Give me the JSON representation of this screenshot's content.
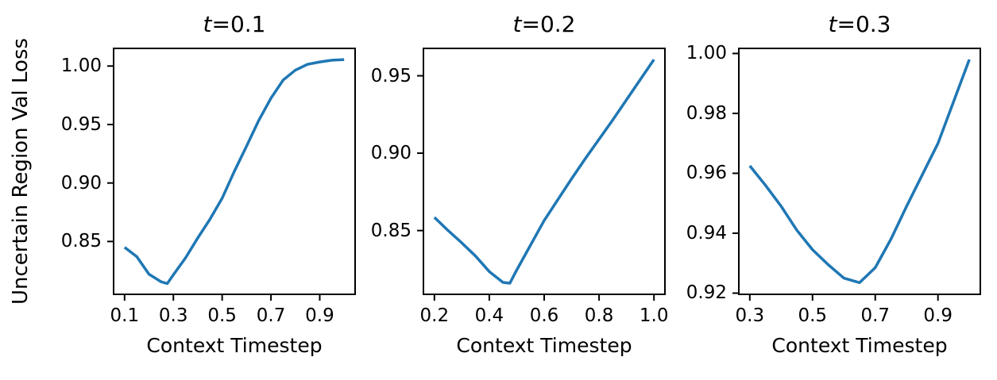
{
  "figure": {
    "background": "#ffffff",
    "spine_color": "#000000",
    "tick_color": "#000000",
    "text_color": "#000000",
    "shared_ylabel": "Uncertain Region Val Loss"
  },
  "chart_data": [
    {
      "type": "line",
      "title": "t=0.1",
      "title_var": "t",
      "title_rest": "=0.1",
      "xlabel": "Context Timestep",
      "ylabel": "Uncertain Region Val Loss",
      "line_color": "#1f77b4",
      "grid": false,
      "legend": null,
      "x": [
        0.1,
        0.15,
        0.2,
        0.25,
        0.275,
        0.3,
        0.35,
        0.4,
        0.45,
        0.5,
        0.55,
        0.6,
        0.65,
        0.7,
        0.75,
        0.8,
        0.85,
        0.9,
        0.95,
        1.0
      ],
      "y": [
        0.845,
        0.837,
        0.822,
        0.8155,
        0.814,
        0.8215,
        0.836,
        0.853,
        0.869,
        0.887,
        0.91,
        0.9315,
        0.9535,
        0.9725,
        0.988,
        0.9965,
        1.0015,
        1.0035,
        1.005,
        1.0055
      ],
      "xlim": [
        0.055,
        1.045
      ],
      "ylim": [
        0.8048,
        1.0151
      ],
      "xtick_values": [
        0.1,
        0.3,
        0.5,
        0.7,
        0.9
      ],
      "xtick_labels": [
        "0.1",
        "0.3",
        "0.5",
        "0.7",
        "0.9"
      ],
      "ytick_values": [
        1.0,
        0.95,
        0.9,
        0.85
      ],
      "ytick_labels": [
        "1.00",
        "0.95",
        "0.90",
        "0.85"
      ]
    },
    {
      "type": "line",
      "title": "t=0.2",
      "title_var": "t",
      "title_rest": "=0.2",
      "xlabel": "Context Timestep",
      "ylabel": "Uncertain Region Val Loss",
      "line_color": "#1f77b4",
      "grid": false,
      "legend": null,
      "x": [
        0.2,
        0.25,
        0.3,
        0.35,
        0.4,
        0.45,
        0.475,
        0.5,
        0.55,
        0.6,
        0.65,
        0.7,
        0.75,
        0.8,
        0.85,
        0.9,
        0.95,
        1.0
      ],
      "y": [
        0.8585,
        0.85,
        0.842,
        0.8335,
        0.8235,
        0.8165,
        0.816,
        0.8245,
        0.8405,
        0.8565,
        0.87,
        0.8835,
        0.8965,
        0.909,
        0.9215,
        0.9345,
        0.9475,
        0.9605
      ],
      "xlim": [
        0.16,
        1.04
      ],
      "ylim": [
        0.8088,
        0.9677
      ],
      "xtick_values": [
        0.2,
        0.4,
        0.6,
        0.8,
        1.0
      ],
      "xtick_labels": [
        "0.2",
        "0.4",
        "0.6",
        "0.8",
        "1.0"
      ],
      "ytick_values": [
        0.95,
        0.9,
        0.85
      ],
      "ytick_labels": [
        "0.95",
        "0.90",
        "0.85"
      ]
    },
    {
      "type": "line",
      "title": "t=0.3",
      "title_var": "t",
      "title_rest": "=0.3",
      "xlabel": "Context Timestep",
      "ylabel": "Uncertain Region Val Loss",
      "line_color": "#1f77b4",
      "grid": false,
      "legend": null,
      "x": [
        0.3,
        0.35,
        0.4,
        0.45,
        0.5,
        0.55,
        0.6,
        0.65,
        0.7,
        0.75,
        0.8,
        0.85,
        0.9,
        0.95,
        1.0
      ],
      "y": [
        0.9625,
        0.956,
        0.949,
        0.941,
        0.9345,
        0.9295,
        0.925,
        0.9235,
        0.9285,
        0.938,
        0.949,
        0.9595,
        0.97,
        0.984,
        0.998
      ],
      "xlim": [
        0.265,
        1.035
      ],
      "ylim": [
        0.9196,
        1.0017
      ],
      "xtick_values": [
        0.3,
        0.5,
        0.7,
        0.9
      ],
      "xtick_labels": [
        "0.3",
        "0.5",
        "0.7",
        "0.9"
      ],
      "ytick_values": [
        1.0,
        0.98,
        0.96,
        0.94,
        0.92
      ],
      "ytick_labels": [
        "1.00",
        "0.98",
        "0.96",
        "0.94",
        "0.92"
      ]
    }
  ]
}
